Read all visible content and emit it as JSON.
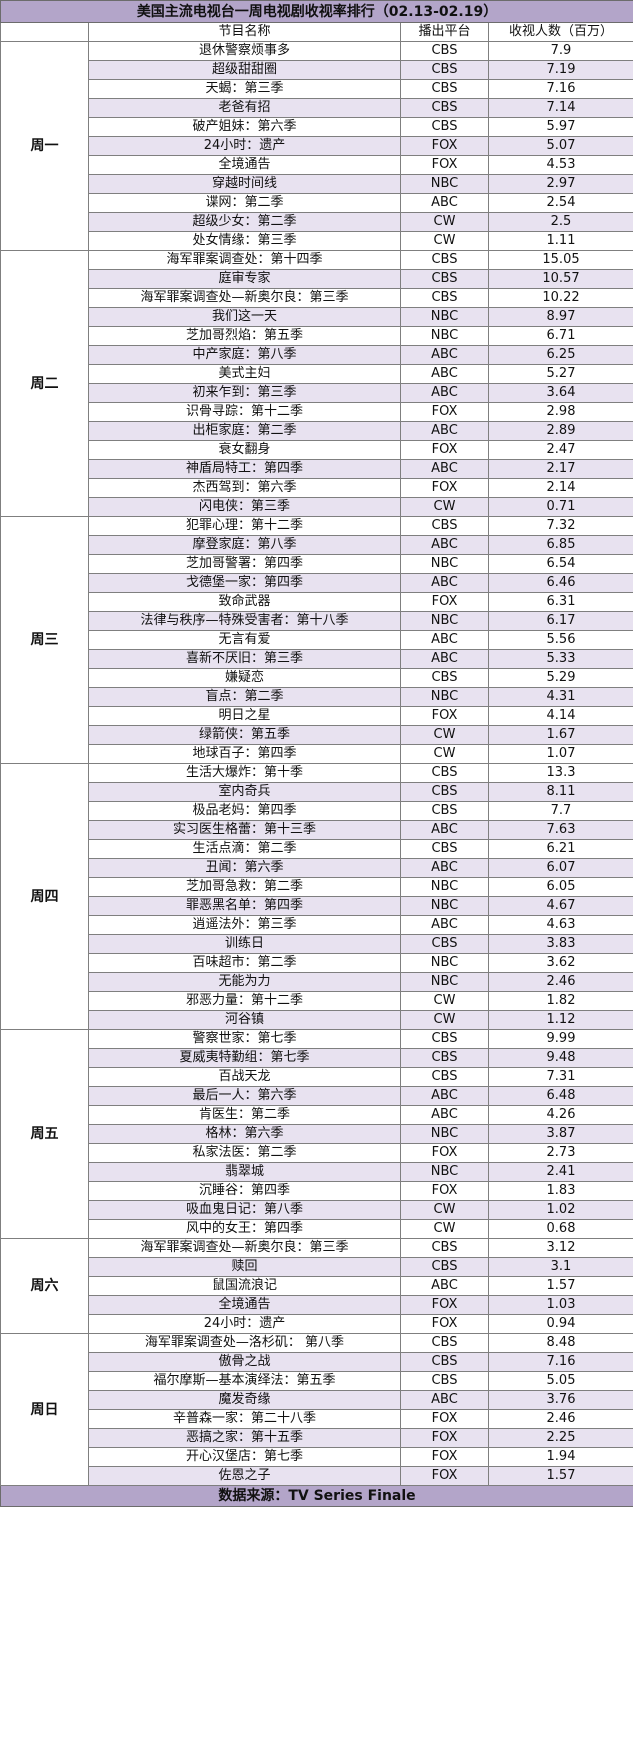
{
  "title": "美国主流电视台一周电视剧收视率排行（02.13-02.19）",
  "headers": {
    "show": "节目名称",
    "network": "播出平台",
    "viewers": "收视人数（百万）"
  },
  "source": "数据来源：TV Series Finale",
  "days": [
    {
      "label": "周一",
      "rows": [
        [
          "退休警察烦事多",
          "CBS",
          "7.9"
        ],
        [
          "超级甜甜圈",
          "CBS",
          "7.19"
        ],
        [
          "天蝎：第三季",
          "CBS",
          "7.16"
        ],
        [
          "老爸有招",
          "CBS",
          "7.14"
        ],
        [
          "破产姐妹：第六季",
          "CBS",
          "5.97"
        ],
        [
          "24小时：遗产",
          "FOX",
          "5.07"
        ],
        [
          "全境通告",
          "FOX",
          "4.53"
        ],
        [
          "穿越时间线",
          "NBC",
          "2.97"
        ],
        [
          "谍网：第二季",
          "ABC",
          "2.54"
        ],
        [
          "超级少女：第二季",
          "CW",
          "2.5"
        ],
        [
          "处女情缘：第三季",
          "CW",
          "1.11"
        ]
      ]
    },
    {
      "label": "周二",
      "rows": [
        [
          "海军罪案调查处：第十四季",
          "CBS",
          "15.05"
        ],
        [
          "庭审专家",
          "CBS",
          "10.57"
        ],
        [
          "海军罪案调查处—新奥尔良：第三季",
          "CBS",
          "10.22"
        ],
        [
          "我们这一天",
          "NBC",
          "8.97"
        ],
        [
          "芝加哥烈焰：第五季",
          "NBC",
          "6.71"
        ],
        [
          "中产家庭：第八季",
          "ABC",
          "6.25"
        ],
        [
          "美式主妇",
          "ABC",
          "5.27"
        ],
        [
          "初来乍到：第三季",
          "ABC",
          "3.64"
        ],
        [
          "识骨寻踪：第十二季",
          "FOX",
          "2.98"
        ],
        [
          "出柜家庭：第二季",
          "ABC",
          "2.89"
        ],
        [
          "衰女翻身",
          "FOX",
          "2.47"
        ],
        [
          "神盾局特工：第四季",
          "ABC",
          "2.17"
        ],
        [
          "杰西驾到：第六季",
          "FOX",
          "2.14"
        ],
        [
          "闪电侠：第三季",
          "CW",
          "0.71"
        ]
      ]
    },
    {
      "label": "周三",
      "rows": [
        [
          "犯罪心理：第十二季",
          "CBS",
          "7.32"
        ],
        [
          "摩登家庭：第八季",
          "ABC",
          "6.85"
        ],
        [
          "芝加哥警署：第四季",
          "NBC",
          "6.54"
        ],
        [
          "戈德堡一家：第四季",
          "ABC",
          "6.46"
        ],
        [
          "致命武器",
          "FOX",
          "6.31"
        ],
        [
          "法律与秩序—特殊受害者：第十八季",
          "NBC",
          "6.17"
        ],
        [
          "无言有爱",
          "ABC",
          "5.56"
        ],
        [
          "喜新不厌旧：第三季",
          "ABC",
          "5.33"
        ],
        [
          "嫌疑恋",
          "CBS",
          "5.29"
        ],
        [
          "盲点：第二季",
          "NBC",
          "4.31"
        ],
        [
          "明日之星",
          "FOX",
          "4.14"
        ],
        [
          "绿箭侠：第五季",
          "CW",
          "1.67"
        ],
        [
          "地球百子：第四季",
          "CW",
          "1.07"
        ]
      ]
    },
    {
      "label": "周四",
      "rows": [
        [
          "生活大爆炸：第十季",
          "CBS",
          "13.3"
        ],
        [
          "室内奇兵",
          "CBS",
          "8.11"
        ],
        [
          "极品老妈：第四季",
          "CBS",
          "7.7"
        ],
        [
          "实习医生格蕾：第十三季",
          "ABC",
          "7.63"
        ],
        [
          "生活点滴：第二季",
          "CBS",
          "6.21"
        ],
        [
          "丑闻：第六季",
          "ABC",
          "6.07"
        ],
        [
          "芝加哥急救：第二季",
          "NBC",
          "6.05"
        ],
        [
          "罪恶黑名单：第四季",
          "NBC",
          "4.67"
        ],
        [
          "逍遥法外：第三季",
          "ABC",
          "4.63"
        ],
        [
          "训练日",
          "CBS",
          "3.83"
        ],
        [
          "百味超市：第二季",
          "NBC",
          "3.62"
        ],
        [
          "无能为力",
          "NBC",
          "2.46"
        ],
        [
          "邪恶力量：第十二季",
          "CW",
          "1.82"
        ],
        [
          "河谷镇",
          "CW",
          "1.12"
        ]
      ]
    },
    {
      "label": "周五",
      "rows": [
        [
          "警察世家：第七季",
          "CBS",
          "9.99"
        ],
        [
          "夏威夷特勤组：第七季",
          "CBS",
          "9.48"
        ],
        [
          "百战天龙",
          "CBS",
          "7.31"
        ],
        [
          "最后一人：第六季",
          "ABC",
          "6.48"
        ],
        [
          "肯医生：第二季",
          "ABC",
          "4.26"
        ],
        [
          "格林：第六季",
          "NBC",
          "3.87"
        ],
        [
          "私家法医：第二季",
          "FOX",
          "2.73"
        ],
        [
          "翡翠城",
          "NBC",
          "2.41"
        ],
        [
          "沉睡谷：第四季",
          "FOX",
          "1.83"
        ],
        [
          "吸血鬼日记：第八季",
          "CW",
          "1.02"
        ],
        [
          "风中的女王：第四季",
          "CW",
          "0.68"
        ]
      ]
    },
    {
      "label": "周六",
      "rows": [
        [
          "海军罪案调查处—新奥尔良：第三季",
          "CBS",
          "3.12"
        ],
        [
          "赎回",
          "CBS",
          "3.1"
        ],
        [
          "鼠国流浪记",
          "ABC",
          "1.57"
        ],
        [
          "全境通告",
          "FOX",
          "1.03"
        ],
        [
          "24小时：遗产",
          "FOX",
          "0.94"
        ]
      ]
    },
    {
      "label": "周日",
      "rows": [
        [
          "海军罪案调查处—洛杉矶： 第八季",
          "CBS",
          "8.48"
        ],
        [
          "傲骨之战",
          "CBS",
          "7.16"
        ],
        [
          "福尔摩斯—基本演绎法：第五季",
          "CBS",
          "5.05"
        ],
        [
          "魔发奇缘",
          "ABC",
          "3.76"
        ],
        [
          "辛普森一家：第二十八季",
          "FOX",
          "2.46"
        ],
        [
          "恶搞之家：第十五季",
          "FOX",
          "2.25"
        ],
        [
          "开心汉堡店：第七季",
          "FOX",
          "1.94"
        ],
        [
          "佐恩之子",
          "FOX",
          "1.57"
        ]
      ]
    }
  ]
}
